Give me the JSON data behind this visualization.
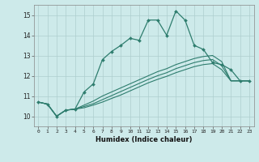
{
  "xlabel": "Humidex (Indice chaleur)",
  "background_color": "#cdeaea",
  "line_color": "#2e7d6e",
  "grid_color": "#aecece",
  "xlim": [
    -0.5,
    23.5
  ],
  "ylim": [
    9.5,
    15.5
  ],
  "yticks": [
    10,
    11,
    12,
    13,
    14,
    15
  ],
  "xticks": [
    0,
    1,
    2,
    3,
    4,
    5,
    6,
    7,
    8,
    9,
    10,
    11,
    12,
    13,
    14,
    15,
    16,
    17,
    18,
    19,
    20,
    21,
    22,
    23
  ],
  "series1_x": [
    0,
    1,
    2,
    3,
    4,
    5,
    6,
    7,
    8,
    9,
    10,
    11,
    12,
    13,
    14,
    15,
    16,
    17,
    18,
    19,
    20,
    21,
    22,
    23
  ],
  "series1_y": [
    10.7,
    10.6,
    10.0,
    10.3,
    10.35,
    11.2,
    11.6,
    12.8,
    13.2,
    13.5,
    13.85,
    13.75,
    14.75,
    14.75,
    14.0,
    15.2,
    14.75,
    13.5,
    13.3,
    12.65,
    12.55,
    12.3,
    11.75,
    11.75
  ],
  "series2_x": [
    0,
    1,
    2,
    3,
    4,
    5,
    6,
    7,
    8,
    9,
    10,
    11,
    12,
    13,
    14,
    15,
    16,
    17,
    18,
    19,
    20,
    21,
    22,
    23
  ],
  "series2_y": [
    10.7,
    10.6,
    10.0,
    10.3,
    10.35,
    10.55,
    10.75,
    11.0,
    11.2,
    11.4,
    11.6,
    11.8,
    12.0,
    12.2,
    12.35,
    12.55,
    12.7,
    12.85,
    12.95,
    13.0,
    12.7,
    11.75,
    11.75,
    11.75
  ],
  "series3_x": [
    0,
    1,
    2,
    3,
    4,
    5,
    6,
    7,
    8,
    9,
    10,
    11,
    12,
    13,
    14,
    15,
    16,
    17,
    18,
    19,
    20,
    21,
    22,
    23
  ],
  "series3_y": [
    10.7,
    10.6,
    10.0,
    10.3,
    10.35,
    10.48,
    10.62,
    10.82,
    11.02,
    11.22,
    11.42,
    11.62,
    11.82,
    12.0,
    12.15,
    12.35,
    12.5,
    12.65,
    12.75,
    12.8,
    12.5,
    11.75,
    11.75,
    11.75
  ],
  "series4_x": [
    0,
    1,
    2,
    3,
    4,
    5,
    6,
    7,
    8,
    9,
    10,
    11,
    12,
    13,
    14,
    15,
    16,
    17,
    18,
    19,
    20,
    21,
    22,
    23
  ],
  "series4_y": [
    10.7,
    10.6,
    10.0,
    10.3,
    10.35,
    10.42,
    10.55,
    10.7,
    10.88,
    11.05,
    11.25,
    11.45,
    11.65,
    11.82,
    11.97,
    12.15,
    12.3,
    12.45,
    12.55,
    12.6,
    12.3,
    11.75,
    11.75,
    11.75
  ]
}
